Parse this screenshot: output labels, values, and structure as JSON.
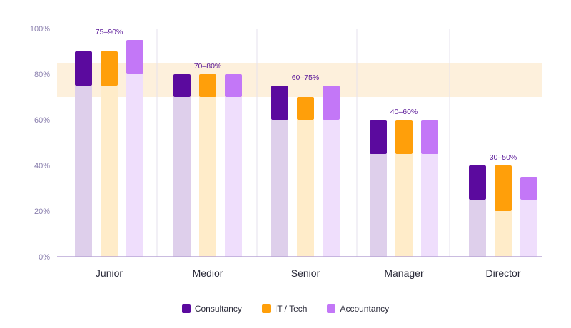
{
  "chart_data": {
    "type": "bar",
    "categories": [
      "Junior",
      "Medior",
      "Senior",
      "Manager",
      "Director"
    ],
    "range_labels": [
      "75–90%",
      "70–80%",
      "60–75%",
      "40–60%",
      "30–50%"
    ],
    "y_ticks": [
      "0%",
      "20%",
      "40%",
      "60%",
      "80%",
      "100%"
    ],
    "ylim": [
      0,
      100
    ],
    "highlight_band": [
      70,
      85
    ],
    "series": [
      {
        "name": "Consultancy",
        "color": "#5b0a9e",
        "light_color": "#decfeb",
        "low": [
          75,
          70,
          60,
          45,
          25
        ],
        "high": [
          90,
          80,
          75,
          60,
          40
        ]
      },
      {
        "name": "IT / Tech",
        "color": "#ff9f0a",
        "light_color": "#ffecc9",
        "low": [
          75,
          70,
          60,
          45,
          20
        ],
        "high": [
          90,
          80,
          70,
          60,
          40
        ]
      },
      {
        "name": "Accountancy",
        "color": "#c377f7",
        "light_color": "#efdefc",
        "low": [
          80,
          70,
          60,
          45,
          25
        ],
        "high": [
          95,
          80,
          75,
          60,
          35
        ]
      }
    ],
    "grid": true,
    "legend_position": "bottom"
  }
}
